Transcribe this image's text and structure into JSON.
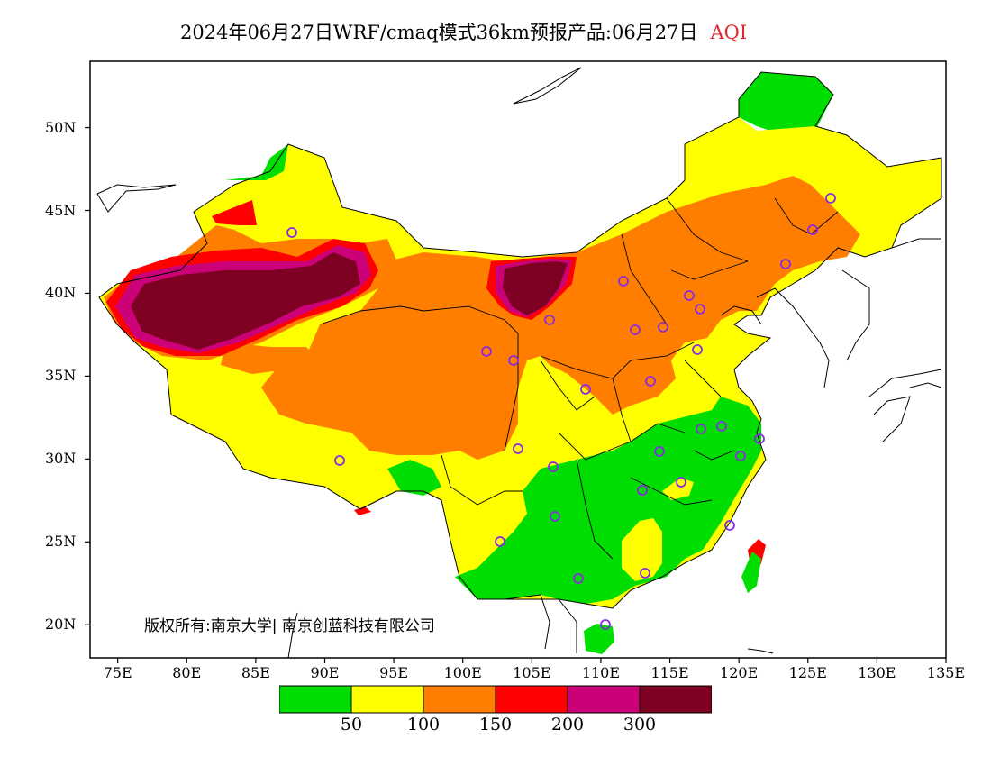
{
  "title": {
    "text": "2024年06月27日WRF/cmaq模式36km预报产品:06月27日",
    "product": "AQI"
  },
  "copyright": "版权所有:南京大学| 南京创蓝科技有限公司",
  "axes": {
    "x_ticks": [
      "75E",
      "80E",
      "85E",
      "90E",
      "95E",
      "100E",
      "105E",
      "110E",
      "115E",
      "120E",
      "125E",
      "130E",
      "135E"
    ],
    "y_ticks": [
      "50N",
      "45N",
      "40N",
      "35N",
      "30N",
      "25N",
      "20N"
    ],
    "xlim": [
      73,
      135
    ],
    "ylim": [
      18,
      54
    ]
  },
  "legend": {
    "colors": [
      "#00dd00",
      "#ffff00",
      "#ff7e00",
      "#ff0000",
      "#cc0077",
      "#7e0023"
    ],
    "labels": [
      "50",
      "100",
      "150",
      "200",
      "300"
    ]
  }
}
